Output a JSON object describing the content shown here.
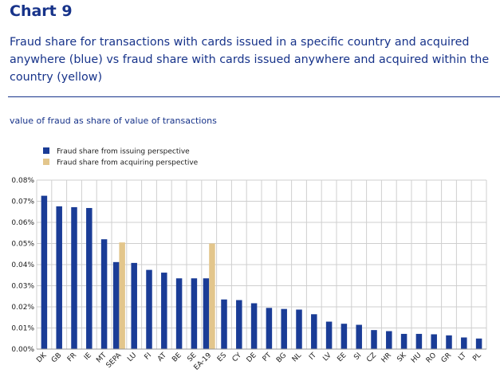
{
  "header": {
    "chart_label": "Chart 9",
    "title": "Fraud share for transactions with cards issued in a specific country and acquired anywhere (blue) vs fraud share with cards issued anywhere and acquired within the country (yellow)",
    "unit_label": "value of fraud as share of value of transactions"
  },
  "colors": {
    "issuing": "#1a3c96",
    "acquiring": "#e3c68c",
    "grid": "#cfcfcf",
    "axis": "#17338a"
  },
  "chart_data": {
    "type": "bar",
    "title": "",
    "xlabel": "",
    "ylabel": "",
    "ylim": [
      0,
      0.08
    ],
    "yticks": [
      "0.00%",
      "0.01%",
      "0.02%",
      "0.03%",
      "0.04%",
      "0.05%",
      "0.06%",
      "0.07%",
      "0.08%"
    ],
    "grid": true,
    "legend_position": "top-left",
    "categories": [
      "DK",
      "GB",
      "FR",
      "IE",
      "MT",
      "SEPA",
      "LU",
      "FI",
      "AT",
      "BE",
      "SE",
      "EA-19",
      "ES",
      "CY",
      "DE",
      "PT",
      "BG",
      "NL",
      "IT",
      "LV",
      "EE",
      "SI",
      "CZ",
      "HR",
      "SK",
      "HU",
      "RO",
      "GR",
      "LT",
      "PL"
    ],
    "series": [
      {
        "name": "Fraud share from issuing perspective",
        "values": [
          0.0726,
          0.0676,
          0.0672,
          0.0668,
          0.052,
          0.0412,
          0.0408,
          0.0375,
          0.0362,
          0.0335,
          0.0335,
          0.0335,
          0.0235,
          0.0232,
          0.0217,
          0.0195,
          0.019,
          0.0187,
          0.0165,
          0.013,
          0.012,
          0.0115,
          0.009,
          0.0085,
          0.0072,
          0.0072,
          0.007,
          0.0065,
          0.0055,
          0.005
        ]
      },
      {
        "name": "Fraud share from acquiring perspective",
        "values": [
          null,
          null,
          null,
          null,
          null,
          0.0505,
          null,
          null,
          null,
          null,
          null,
          0.05,
          null,
          null,
          null,
          null,
          null,
          null,
          null,
          null,
          null,
          null,
          null,
          null,
          null,
          null,
          null,
          null,
          null,
          null
        ]
      }
    ]
  }
}
